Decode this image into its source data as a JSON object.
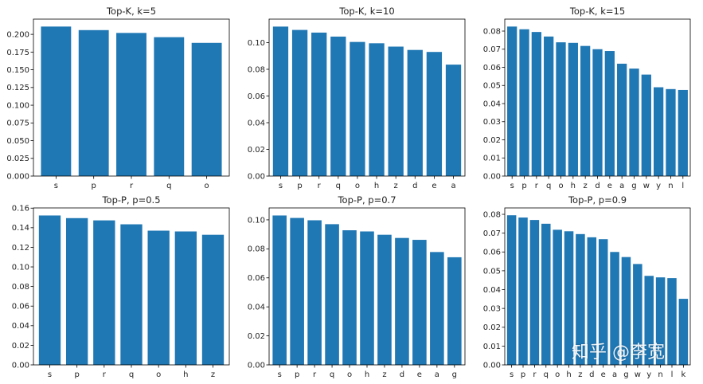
{
  "watermark": "知乎 @李宽",
  "colors": {
    "bar": "#1f77b4",
    "axis": "#000000",
    "text": "#222222",
    "background": "#ffffff"
  },
  "chart_data": [
    {
      "type": "bar",
      "title": "Top-K, k=5",
      "categories": [
        "s",
        "p",
        "r",
        "q",
        "o"
      ],
      "values": [
        0.211,
        0.206,
        0.202,
        0.196,
        0.188
      ],
      "yticks": [
        0.0,
        0.025,
        0.05,
        0.075,
        0.1,
        0.125,
        0.15,
        0.175,
        0.2
      ],
      "ytick_labels": [
        "0.000",
        "0.025",
        "0.050",
        "0.075",
        "0.100",
        "0.125",
        "0.150",
        "0.175",
        "0.200"
      ],
      "ylim": [
        0,
        0.2215
      ],
      "xlabel": "",
      "ylabel": ""
    },
    {
      "type": "bar",
      "title": "Top-K, k=10",
      "categories": [
        "s",
        "p",
        "r",
        "q",
        "o",
        "h",
        "z",
        "d",
        "e",
        "a"
      ],
      "values": [
        0.112,
        0.1095,
        0.1075,
        0.1045,
        0.1005,
        0.0995,
        0.097,
        0.0945,
        0.093,
        0.0835
      ],
      "yticks": [
        0.0,
        0.02,
        0.04,
        0.06,
        0.08,
        0.1
      ],
      "ytick_labels": [
        "0.00",
        "0.02",
        "0.04",
        "0.06",
        "0.08",
        "0.10"
      ],
      "ylim": [
        0,
        0.1176
      ],
      "xlabel": "",
      "ylabel": ""
    },
    {
      "type": "bar",
      "title": "Top-K, k=15",
      "categories": [
        "s",
        "p",
        "r",
        "q",
        "o",
        "h",
        "z",
        "d",
        "e",
        "a",
        "g",
        "w",
        "y",
        "n",
        "l"
      ],
      "values": [
        0.0825,
        0.081,
        0.0795,
        0.077,
        0.0738,
        0.0735,
        0.0718,
        0.07,
        0.069,
        0.062,
        0.0593,
        0.056,
        0.049,
        0.048,
        0.0475
      ],
      "yticks": [
        0.0,
        0.01,
        0.02,
        0.03,
        0.04,
        0.05,
        0.06,
        0.07,
        0.08
      ],
      "ytick_labels": [
        "0.00",
        "0.01",
        "0.02",
        "0.03",
        "0.04",
        "0.05",
        "0.06",
        "0.07",
        "0.08"
      ],
      "ylim": [
        0,
        0.0866
      ],
      "xlabel": "",
      "ylabel": ""
    },
    {
      "type": "bar",
      "title": "Top-P, p=0.5",
      "categories": [
        "s",
        "p",
        "r",
        "q",
        "o",
        "h",
        "z"
      ],
      "values": [
        0.1525,
        0.1498,
        0.1475,
        0.1435,
        0.137,
        0.1362,
        0.1328
      ],
      "yticks": [
        0.0,
        0.02,
        0.04,
        0.06,
        0.08,
        0.1,
        0.12,
        0.14,
        0.16
      ],
      "ytick_labels": [
        "0.00",
        "0.02",
        "0.04",
        "0.06",
        "0.08",
        "0.10",
        "0.12",
        "0.14",
        "0.16"
      ],
      "ylim": [
        0,
        0.1602
      ],
      "xlabel": "",
      "ylabel": ""
    },
    {
      "type": "bar",
      "title": "Top-P, p=0.7",
      "categories": [
        "s",
        "p",
        "r",
        "q",
        "o",
        "h",
        "z",
        "d",
        "e",
        "a",
        "g"
      ],
      "values": [
        0.103,
        0.1013,
        0.0997,
        0.097,
        0.0928,
        0.092,
        0.0897,
        0.0875,
        0.0862,
        0.0778,
        0.0742
      ],
      "yticks": [
        0.0,
        0.02,
        0.04,
        0.06,
        0.08,
        0.1
      ],
      "ytick_labels": [
        "0.00",
        "0.02",
        "0.04",
        "0.06",
        "0.08",
        "0.10"
      ],
      "ylim": [
        0,
        0.1082
      ],
      "xlabel": "",
      "ylabel": ""
    },
    {
      "type": "bar",
      "title": "Top-P, p=0.9",
      "categories": [
        "s",
        "p",
        "r",
        "q",
        "o",
        "h",
        "z",
        "d",
        "e",
        "a",
        "g",
        "w",
        "y",
        "n",
        "l",
        "k"
      ],
      "values": [
        0.0795,
        0.0783,
        0.077,
        0.075,
        0.0718,
        0.071,
        0.0695,
        0.0678,
        0.0668,
        0.06,
        0.0573,
        0.0536,
        0.0473,
        0.0465,
        0.0461,
        0.0351
      ],
      "yticks": [
        0.0,
        0.01,
        0.02,
        0.03,
        0.04,
        0.05,
        0.06,
        0.07,
        0.08
      ],
      "ytick_labels": [
        "0.00",
        "0.01",
        "0.02",
        "0.03",
        "0.04",
        "0.05",
        "0.06",
        "0.07",
        "0.08"
      ],
      "ylim": [
        0,
        0.0834
      ],
      "xlabel": "",
      "ylabel": ""
    }
  ]
}
